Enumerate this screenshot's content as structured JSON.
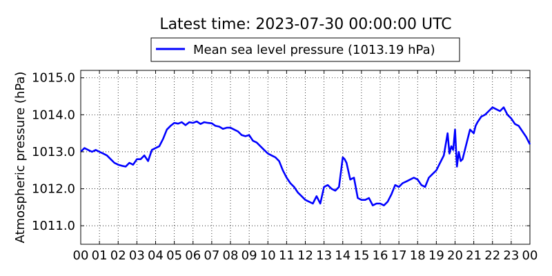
{
  "chart_data": {
    "type": "line",
    "title": "Latest time: 2023-07-30 00:00:00 UTC",
    "xlabel": "",
    "ylabel": "Atmospheric pressure (hPa)",
    "xlim": [
      0,
      24
    ],
    "ylim": [
      1010.5,
      1015.2
    ],
    "x_ticks": [
      0,
      1,
      2,
      3,
      4,
      5,
      6,
      7,
      8,
      9,
      10,
      11,
      12,
      13,
      14,
      15,
      16,
      17,
      18,
      19,
      20,
      21,
      22,
      23,
      24
    ],
    "x_tick_labels": [
      "00",
      "01",
      "02",
      "03",
      "04",
      "05",
      "06",
      "07",
      "08",
      "09",
      "10",
      "11",
      "12",
      "13",
      "14",
      "15",
      "16",
      "17",
      "18",
      "19",
      "20",
      "21",
      "22",
      "23",
      "00"
    ],
    "y_ticks": [
      1011.0,
      1012.0,
      1013.0,
      1014.0,
      1015.0
    ],
    "y_tick_labels": [
      "1011.0",
      "1012.0",
      "1013.0",
      "1014.0",
      "1015.0"
    ],
    "grid": true,
    "legend_position": "top-center",
    "series": [
      {
        "name": "Mean sea level pressure (1013.19 hPa)",
        "color": "#0000ff",
        "x": [
          0.0,
          0.2,
          0.4,
          0.6,
          0.8,
          1.0,
          1.2,
          1.4,
          1.6,
          1.8,
          2.0,
          2.2,
          2.4,
          2.6,
          2.8,
          3.0,
          3.2,
          3.4,
          3.6,
          3.8,
          4.0,
          4.2,
          4.4,
          4.6,
          4.8,
          5.0,
          5.2,
          5.4,
          5.6,
          5.8,
          6.0,
          6.2,
          6.4,
          6.6,
          6.8,
          7.0,
          7.2,
          7.4,
          7.6,
          7.8,
          8.0,
          8.2,
          8.4,
          8.6,
          8.8,
          9.0,
          9.2,
          9.4,
          9.6,
          9.8,
          10.0,
          10.2,
          10.4,
          10.6,
          10.8,
          11.0,
          11.2,
          11.4,
          11.6,
          11.8,
          12.0,
          12.2,
          12.4,
          12.6,
          12.8,
          13.0,
          13.2,
          13.4,
          13.6,
          13.8,
          14.0,
          14.1,
          14.2,
          14.4,
          14.6,
          14.8,
          15.0,
          15.2,
          15.4,
          15.6,
          15.8,
          16.0,
          16.2,
          16.4,
          16.6,
          16.8,
          17.0,
          17.2,
          17.4,
          17.6,
          17.8,
          18.0,
          18.2,
          18.4,
          18.6,
          18.8,
          19.0,
          19.2,
          19.4,
          19.6,
          19.7,
          19.8,
          19.9,
          20.0,
          20.1,
          20.2,
          20.3,
          20.4,
          20.6,
          20.7,
          20.8,
          21.0,
          21.1,
          21.2,
          21.4,
          21.6,
          21.8,
          22.0,
          22.2,
          22.4,
          22.6,
          22.8,
          23.0,
          23.2,
          23.4,
          23.6,
          23.8,
          24.0
        ],
        "y": [
          1013.0,
          1013.1,
          1013.05,
          1013.0,
          1013.05,
          1013.0,
          1012.95,
          1012.9,
          1012.8,
          1012.7,
          1012.65,
          1012.62,
          1012.6,
          1012.7,
          1012.65,
          1012.8,
          1012.8,
          1012.9,
          1012.75,
          1013.05,
          1013.1,
          1013.15,
          1013.35,
          1013.6,
          1013.7,
          1013.78,
          1013.76,
          1013.8,
          1013.72,
          1013.8,
          1013.78,
          1013.82,
          1013.75,
          1013.8,
          1013.78,
          1013.77,
          1013.7,
          1013.68,
          1013.62,
          1013.65,
          1013.65,
          1013.6,
          1013.55,
          1013.45,
          1013.42,
          1013.45,
          1013.3,
          1013.25,
          1013.15,
          1013.05,
          1012.95,
          1012.9,
          1012.85,
          1012.75,
          1012.5,
          1012.3,
          1012.15,
          1012.05,
          1011.9,
          1011.8,
          1011.7,
          1011.65,
          1011.6,
          1011.8,
          1011.6,
          1012.05,
          1012.1,
          1012.0,
          1011.95,
          1012.05,
          1012.85,
          1012.8,
          1012.7,
          1012.25,
          1012.3,
          1011.75,
          1011.7,
          1011.7,
          1011.75,
          1011.55,
          1011.6,
          1011.6,
          1011.55,
          1011.65,
          1011.85,
          1012.1,
          1012.05,
          1012.15,
          1012.2,
          1012.25,
          1012.3,
          1012.25,
          1012.1,
          1012.05,
          1012.3,
          1012.4,
          1012.5,
          1012.7,
          1012.9,
          1013.5,
          1012.95,
          1013.15,
          1013.05,
          1013.6,
          1012.6,
          1013.0,
          1012.75,
          1012.8,
          1013.2,
          1013.4,
          1013.6,
          1013.5,
          1013.7,
          1013.8,
          1013.95,
          1014.0,
          1014.1,
          1014.2,
          1014.15,
          1014.1,
          1014.2,
          1014.0,
          1013.9,
          1013.75,
          1013.7,
          1013.55,
          1013.4,
          1013.2
        ]
      }
    ]
  }
}
